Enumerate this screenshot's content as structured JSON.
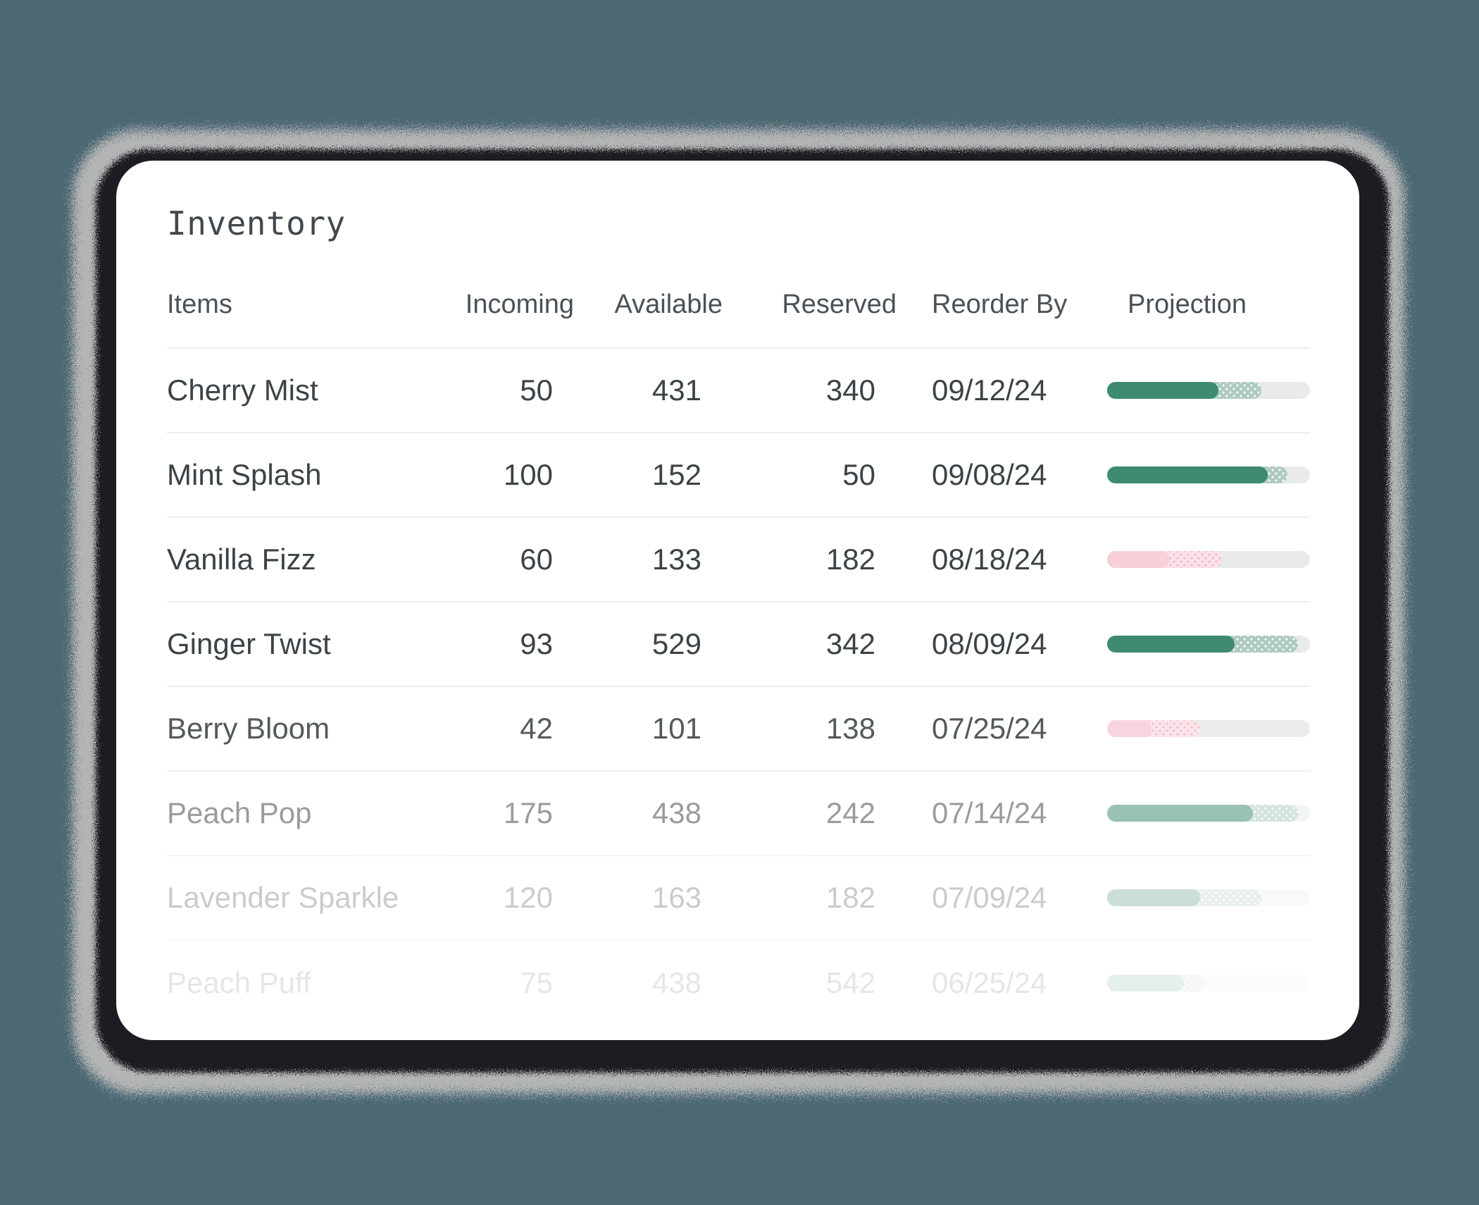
{
  "page": {
    "background_color": "#4C6873"
  },
  "card": {
    "title": "Inventory",
    "columns": [
      {
        "id": "items",
        "label": "Items"
      },
      {
        "id": "incoming",
        "label": "Incoming"
      },
      {
        "id": "available",
        "label": "Available"
      },
      {
        "id": "reserved",
        "label": "Reserved"
      },
      {
        "id": "reorder_by",
        "label": "Reorder By"
      },
      {
        "id": "projection",
        "label": "Projection"
      }
    ],
    "rows": [
      {
        "item": "Cherry Mist",
        "incoming": "50",
        "available": "431",
        "reserved": "340",
        "reorder_by": "09/12/24",
        "projection": {
          "tone": "green",
          "solid_pct": 55,
          "dotted_pct": 21
        },
        "dimmed": false
      },
      {
        "item": "Mint Splash",
        "incoming": "100",
        "available": "152",
        "reserved": "50",
        "reorder_by": "09/08/24",
        "projection": {
          "tone": "green",
          "solid_pct": 79,
          "dotted_pct": 10
        },
        "dimmed": false
      },
      {
        "item": "Vanilla Fizz",
        "incoming": "60",
        "available": "133",
        "reserved": "182",
        "reorder_by": "08/18/24",
        "projection": {
          "tone": "pink",
          "solid_pct": 31,
          "dotted_pct": 26
        },
        "dimmed": false
      },
      {
        "item": "Ginger Twist",
        "incoming": "93",
        "available": "529",
        "reserved": "342",
        "reorder_by": "08/09/24",
        "projection": {
          "tone": "green",
          "solid_pct": 63,
          "dotted_pct": 31
        },
        "dimmed": false
      },
      {
        "item": "Berry Bloom",
        "incoming": "42",
        "available": "101",
        "reserved": "138",
        "reorder_by": "07/25/24",
        "projection": {
          "tone": "pink",
          "solid_pct": 22,
          "dotted_pct": 24
        },
        "dimmed": false
      },
      {
        "item": "Peach Pop",
        "incoming": "175",
        "available": "438",
        "reserved": "242",
        "reorder_by": "07/14/24",
        "projection": {
          "tone": "green",
          "solid_pct": 72,
          "dotted_pct": 22
        },
        "dimmed": true
      },
      {
        "item": "Lavender Sparkle",
        "incoming": "120",
        "available": "163",
        "reserved": "182",
        "reorder_by": "07/09/24",
        "projection": {
          "tone": "green",
          "solid_pct": 46,
          "dotted_pct": 30
        },
        "dimmed": true
      },
      {
        "item": "Peach Puff",
        "incoming": "75",
        "available": "438",
        "reserved": "542",
        "reorder_by": "06/25/24",
        "projection": {
          "tone": "green",
          "solid_pct": 38,
          "dotted_pct": 10
        },
        "dimmed": true
      }
    ],
    "colors": {
      "background": "#4C6873",
      "card": "#FFFFFF",
      "frame": "#1D1F21",
      "halo": "#B3B4B4",
      "title_text": "#42484D",
      "header_text": "#4A5157",
      "row_text": "#3C4347",
      "divider": "#ECEDED",
      "bar_track": "#E9EAEA",
      "green_solid": "#3E8A73",
      "green_dotted": "#AECAC0",
      "pink_solid": "#F8D0DA",
      "pink_dotted": "#FBE3E8"
    }
  }
}
